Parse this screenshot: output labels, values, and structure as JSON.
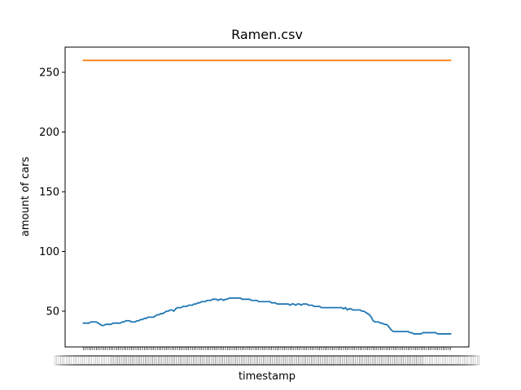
{
  "chart_data": {
    "type": "line",
    "title": "Ramen.csv",
    "xlabel": "timestamp",
    "ylabel": "amount of cars",
    "ylim": [
      30,
      270
    ],
    "yticks": [
      50,
      100,
      150,
      200,
      250
    ],
    "x_tick_labels_overlapping": true,
    "grid": false,
    "legend": "none",
    "n_points": 200,
    "series": [
      {
        "color": "#1f77b4",
        "values": [
          40,
          40,
          40,
          40,
          41,
          41,
          41,
          41,
          40,
          39,
          38,
          38,
          39,
          39,
          39,
          39,
          40,
          40,
          40,
          40,
          40,
          41,
          41,
          42,
          42,
          42,
          41,
          41,
          41,
          42,
          42,
          43,
          43,
          44,
          44,
          45,
          45,
          45,
          45,
          46,
          47,
          47,
          48,
          48,
          49,
          50,
          50,
          51,
          51,
          50,
          52,
          53,
          53,
          53,
          54,
          54,
          54,
          55,
          55,
          55,
          56,
          56,
          57,
          57,
          58,
          58,
          58,
          59,
          59,
          59,
          60,
          60,
          60,
          59,
          60,
          60,
          59,
          60,
          60,
          61,
          61,
          61,
          61,
          61,
          61,
          61,
          60,
          60,
          60,
          60,
          60,
          59,
          59,
          59,
          59,
          58,
          58,
          58,
          58,
          58,
          58,
          58,
          57,
          57,
          57,
          56,
          56,
          56,
          56,
          56,
          56,
          56,
          55,
          56,
          56,
          55,
          56,
          56,
          55,
          56,
          56,
          56,
          55,
          55,
          55,
          54,
          54,
          54,
          54,
          53,
          53,
          53,
          53,
          53,
          53,
          53,
          53,
          53,
          53,
          53,
          53,
          52,
          53,
          51,
          52,
          52,
          51,
          51,
          51,
          51,
          51,
          50,
          50,
          49,
          48,
          47,
          45,
          42,
          41,
          41,
          41,
          40,
          40,
          39,
          39,
          38,
          36,
          34,
          33,
          33,
          33,
          33,
          33,
          33,
          33,
          33,
          33,
          32,
          32,
          31,
          31,
          31,
          31,
          31,
          32,
          32,
          32,
          32,
          32,
          32,
          32,
          32,
          31,
          31,
          31,
          31,
          31,
          31,
          31,
          31
        ]
      },
      {
        "color": "#ff7f0e",
        "values": [
          260,
          260,
          260,
          260,
          260,
          260,
          260,
          260,
          260,
          260,
          260,
          260,
          260,
          260,
          260,
          260,
          260,
          260,
          260,
          260,
          260,
          260,
          260,
          260,
          260,
          260,
          260,
          260,
          260,
          260,
          260,
          260,
          260,
          260,
          260,
          260,
          260,
          260,
          260,
          260,
          260,
          260,
          260,
          260,
          260,
          260,
          260,
          260,
          260,
          260,
          260,
          260,
          260,
          260,
          260,
          260,
          260,
          260,
          260,
          260,
          260,
          260,
          260,
          260,
          260,
          260,
          260,
          260,
          260,
          260,
          260,
          260,
          260,
          260,
          260,
          260,
          260,
          260,
          260,
          260,
          260,
          260,
          260,
          260,
          260,
          260,
          260,
          260,
          260,
          260,
          260,
          260,
          260,
          260,
          260,
          260,
          260,
          260,
          260,
          260,
          260,
          260,
          260,
          260,
          260,
          260,
          260,
          260,
          260,
          260,
          260,
          260,
          260,
          260,
          260,
          260,
          260,
          260,
          260,
          260,
          260,
          260,
          260,
          260,
          260,
          260,
          260,
          260,
          260,
          260,
          260,
          260,
          260,
          260,
          260,
          260,
          260,
          260,
          260,
          260,
          260,
          260,
          260,
          260,
          260,
          260,
          260,
          260,
          260,
          260,
          260,
          260,
          260,
          260,
          260,
          260,
          260,
          260,
          260,
          260,
          260,
          260,
          260,
          260,
          260,
          260,
          260,
          260,
          260,
          260,
          260,
          260,
          260,
          260,
          260,
          260,
          260,
          260,
          260,
          260,
          260,
          260,
          260,
          260,
          260,
          260,
          260,
          260,
          260,
          260,
          260,
          260,
          260,
          260,
          260,
          260,
          260,
          260,
          260,
          260
        ]
      }
    ]
  }
}
